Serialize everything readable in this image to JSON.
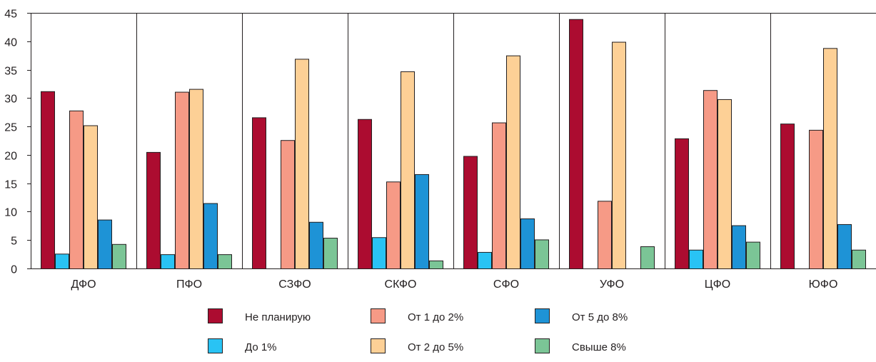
{
  "chart_data": {
    "type": "bar",
    "title": "",
    "xlabel": "",
    "ylabel": "",
    "ylim": [
      0,
      45
    ],
    "yticks": [
      0,
      5,
      10,
      15,
      20,
      25,
      30,
      35,
      40,
      45
    ],
    "grid": "vertical separators between categories",
    "legend_position": "bottom",
    "categories": [
      "ДФО",
      "ПФО",
      "СЗФО",
      "СКФО",
      "СФО",
      "УФО",
      "ЦФО",
      "ЮФО"
    ],
    "series": [
      {
        "name": "Не планирую",
        "color": "#ac0c30",
        "values": [
          31.2,
          20.5,
          26.6,
          26.3,
          19.8,
          43.9,
          22.9,
          25.5
        ]
      },
      {
        "name": "До 1%",
        "color": "#29c3f4",
        "values": [
          2.6,
          2.5,
          0,
          5.5,
          2.9,
          0,
          3.3,
          0
        ]
      },
      {
        "name": "От 1 до 2%",
        "color": "#f69a86",
        "values": [
          27.8,
          31.1,
          22.6,
          15.3,
          25.7,
          11.9,
          31.4,
          24.4
        ]
      },
      {
        "name": "От 2 до 5%",
        "color": "#fdd096",
        "values": [
          25.2,
          31.6,
          36.9,
          34.7,
          37.5,
          39.9,
          29.8,
          38.8
        ]
      },
      {
        "name": "От 5 до 8%",
        "color": "#1e93d6",
        "values": [
          8.6,
          11.5,
          8.2,
          16.6,
          8.8,
          0,
          7.6,
          7.8
        ]
      },
      {
        "name": "Свыше 8%",
        "color": "#7bc596",
        "values": [
          4.3,
          2.5,
          5.4,
          1.4,
          5.1,
          3.9,
          4.7,
          3.3
        ]
      }
    ]
  }
}
